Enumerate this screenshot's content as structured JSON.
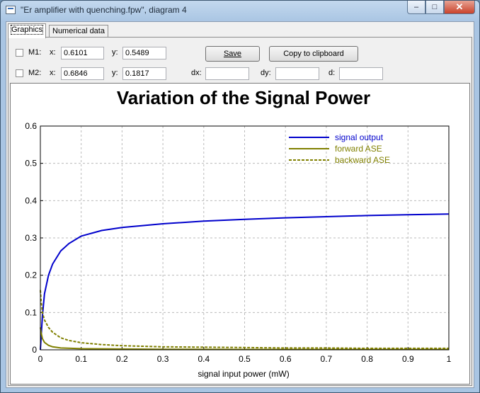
{
  "window": {
    "title": "\"Er amplifier with quenching.fpw\", diagram 4",
    "minimize": "–",
    "maximize": "□",
    "close": "✕"
  },
  "tabs": [
    {
      "label": "Graphics"
    },
    {
      "label": "Numerical data"
    }
  ],
  "markers": {
    "m1": {
      "label": "M1:",
      "x_label": "x:",
      "x": "0.6101",
      "y_label": "y:",
      "y": "0.5489"
    },
    "m2": {
      "label": "M2:",
      "x_label": "x:",
      "x": "0.6846",
      "y_label": "y:",
      "y": "0.1817"
    },
    "dx_label": "dx:",
    "dy_label": "dy:",
    "d_label": "d:",
    "dx": "",
    "dy": "",
    "d": ""
  },
  "buttons": {
    "save": "Save",
    "copy": "Copy to clipboard"
  },
  "chart_data": {
    "type": "line",
    "title": "Variation of the Signal Power",
    "xlabel": "signal input power (mW)",
    "ylabel": "",
    "xlim": [
      0,
      1
    ],
    "ylim": [
      0,
      0.6
    ],
    "xticks": [
      "0",
      "0.1",
      "0.2",
      "0.3",
      "0.4",
      "0.5",
      "0.6",
      "0.7",
      "0.8",
      "0.9",
      "1"
    ],
    "yticks": [
      "0",
      "0.1",
      "0.2",
      "0.3",
      "0.4",
      "0.5",
      "0.6"
    ],
    "grid": true,
    "legend_position": "top-right",
    "series": [
      {
        "name": "signal output",
        "color": "#0000cc",
        "dash": false,
        "x": [
          0,
          0.005,
          0.01,
          0.02,
          0.03,
          0.05,
          0.07,
          0.1,
          0.15,
          0.2,
          0.3,
          0.4,
          0.5,
          0.6,
          0.7,
          0.8,
          0.9,
          1.0
        ],
        "y": [
          0,
          0.09,
          0.15,
          0.2,
          0.23,
          0.265,
          0.285,
          0.305,
          0.32,
          0.328,
          0.338,
          0.345,
          0.35,
          0.354,
          0.357,
          0.36,
          0.362,
          0.364
        ]
      },
      {
        "name": "forward ASE",
        "color": "#808000",
        "dash": false,
        "x": [
          0,
          0.002,
          0.005,
          0.01,
          0.02,
          0.03,
          0.05,
          0.1,
          0.2,
          0.3,
          0.5,
          0.7,
          1.0
        ],
        "y": [
          0.06,
          0.045,
          0.03,
          0.02,
          0.012,
          0.008,
          0.005,
          0.003,
          0.002,
          0.0015,
          0.001,
          0.001,
          0.001
        ]
      },
      {
        "name": "backward ASE",
        "color": "#808000",
        "dash": true,
        "x": [
          0,
          0.002,
          0.005,
          0.01,
          0.02,
          0.03,
          0.05,
          0.07,
          0.1,
          0.15,
          0.2,
          0.3,
          0.4,
          0.5,
          0.6,
          0.7,
          0.8,
          0.9,
          1.0
        ],
        "y": [
          0.16,
          0.13,
          0.1,
          0.08,
          0.06,
          0.047,
          0.032,
          0.025,
          0.019,
          0.014,
          0.011,
          0.008,
          0.007,
          0.006,
          0.005,
          0.005,
          0.004,
          0.004,
          0.004
        ]
      }
    ]
  }
}
